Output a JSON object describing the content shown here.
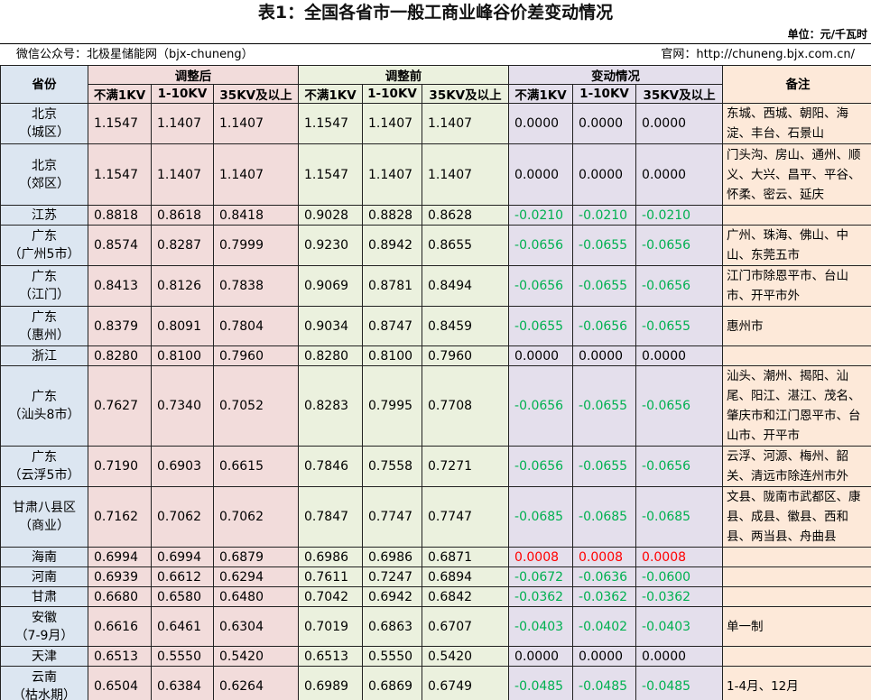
{
  "title": "表1：全国各省市一般工商业峰谷价差变动情况",
  "unit": "单位：元/千瓦时",
  "wechat": "微信公众号：北极星储能网（bjx-chuneng）",
  "website": "官网：http://chuneng.bjx.com.cn/",
  "headers": {
    "province": "省份",
    "after": "调整后",
    "before": "调整前",
    "change": "变动情况",
    "note": "备注",
    "sub": [
      "不满1KV",
      "1-10KV",
      "35KV及以上"
    ]
  },
  "colors": {
    "province": "#dce6f1",
    "after": "#f2dcdb",
    "before": "#ebf1de",
    "change": "#e4dfec",
    "note": "#fde9d9",
    "decrease": "#00b050",
    "increase": "#ff0000"
  },
  "rows": [
    {
      "province": [
        "北京",
        "（城区）"
      ],
      "after": [
        "1.1547",
        "1.1407",
        "1.1407"
      ],
      "before": [
        "1.1547",
        "1.1407",
        "1.1407"
      ],
      "change": [
        "0.0000",
        "0.0000",
        "0.0000"
      ],
      "note": "东城、西城、朝阳、海淀、丰台、石景山"
    },
    {
      "province": [
        "北京",
        "（郊区）"
      ],
      "after": [
        "1.1547",
        "1.1407",
        "1.1407"
      ],
      "before": [
        "1.1547",
        "1.1407",
        "1.1407"
      ],
      "change": [
        "0.0000",
        "0.0000",
        "0.0000"
      ],
      "note": "门头沟、房山、通州、顺义、大兴、昌平、平谷、怀柔、密云、延庆"
    },
    {
      "province": [
        "江苏"
      ],
      "after": [
        "0.8818",
        "0.8618",
        "0.8418"
      ],
      "before": [
        "0.9028",
        "0.8828",
        "0.8628"
      ],
      "change": [
        "-0.0210",
        "-0.0210",
        "-0.0210"
      ],
      "note": ""
    },
    {
      "province": [
        "广东",
        "（广州5市）"
      ],
      "after": [
        "0.8574",
        "0.8287",
        "0.7999"
      ],
      "before": [
        "0.9230",
        "0.8942",
        "0.8655"
      ],
      "change": [
        "-0.0656",
        "-0.0655",
        "-0.0656"
      ],
      "note": "广州、珠海、佛山、中山、东莞五市"
    },
    {
      "province": [
        "广东",
        "（江门）"
      ],
      "after": [
        "0.8413",
        "0.8126",
        "0.7838"
      ],
      "before": [
        "0.9069",
        "0.8781",
        "0.8494"
      ],
      "change": [
        "-0.0656",
        "-0.0655",
        "-0.0656"
      ],
      "note": "江门市除恩平市、台山市、开平市外"
    },
    {
      "province": [
        "广东",
        "（惠州）"
      ],
      "after": [
        "0.8379",
        "0.8091",
        "0.7804"
      ],
      "before": [
        "0.9034",
        "0.8747",
        "0.8459"
      ],
      "change": [
        "-0.0655",
        "-0.0656",
        "-0.0655"
      ],
      "note": "惠州市"
    },
    {
      "province": [
        "浙江"
      ],
      "after": [
        "0.8280",
        "0.8100",
        "0.7960"
      ],
      "before": [
        "0.8280",
        "0.8100",
        "0.7960"
      ],
      "change": [
        "0.0000",
        "0.0000",
        "0.0000"
      ],
      "note": ""
    },
    {
      "province": [
        "广东",
        "（汕头8市）"
      ],
      "after": [
        "0.7627",
        "0.7340",
        "0.7052"
      ],
      "before": [
        "0.8283",
        "0.7995",
        "0.7708"
      ],
      "change": [
        "-0.0656",
        "-0.0655",
        "-0.0656"
      ],
      "note": "汕头、潮州、揭阳、汕尾、阳江、湛江、茂名、肇庆市和江门恩平市、台山市、开平市"
    },
    {
      "province": [
        "广东",
        "（云浮5市）"
      ],
      "after": [
        "0.7190",
        "0.6903",
        "0.6615"
      ],
      "before": [
        "0.7846",
        "0.7558",
        "0.7271"
      ],
      "change": [
        "-0.0656",
        "-0.0655",
        "-0.0656"
      ],
      "note": "云浮、河源、梅州、韶关、清远市除连州市外"
    },
    {
      "province": [
        "甘肃八县区",
        "（商业）"
      ],
      "after": [
        "0.7162",
        "0.7062",
        "0.7062"
      ],
      "before": [
        "0.7847",
        "0.7747",
        "0.7747"
      ],
      "change": [
        "-0.0685",
        "-0.0685",
        "-0.0685"
      ],
      "note": "文县、陇南市武都区、康县、成县、徽县、西和县、两当县、舟曲县"
    },
    {
      "province": [
        "海南"
      ],
      "after": [
        "0.6994",
        "0.6994",
        "0.6879"
      ],
      "before": [
        "0.6986",
        "0.6986",
        "0.6871"
      ],
      "change": [
        "0.0008",
        "0.0008",
        "0.0008"
      ],
      "note": ""
    },
    {
      "province": [
        "河南"
      ],
      "after": [
        "0.6939",
        "0.6612",
        "0.6294"
      ],
      "before": [
        "0.7611",
        "0.7247",
        "0.6894"
      ],
      "change": [
        "-0.0672",
        "-0.0636",
        "-0.0600"
      ],
      "note": ""
    },
    {
      "province": [
        "甘肃"
      ],
      "after": [
        "0.6680",
        "0.6580",
        "0.6480"
      ],
      "before": [
        "0.7042",
        "0.6942",
        "0.6842"
      ],
      "change": [
        "-0.0362",
        "-0.0362",
        "-0.0362"
      ],
      "note": ""
    },
    {
      "province": [
        "安徽",
        "（7-9月）"
      ],
      "after": [
        "0.6616",
        "0.6461",
        "0.6304"
      ],
      "before": [
        "0.7019",
        "0.6863",
        "0.6707"
      ],
      "change": [
        "-0.0403",
        "-0.0402",
        "-0.0403"
      ],
      "note": "单一制"
    },
    {
      "province": [
        "天津"
      ],
      "after": [
        "0.6513",
        "0.5550",
        "0.5420"
      ],
      "before": [
        "0.6513",
        "0.5550",
        "0.5420"
      ],
      "change": [
        "0.0000",
        "0.0000",
        "0.0000"
      ],
      "note": ""
    },
    {
      "province": [
        "云南",
        "（枯水期）"
      ],
      "after": [
        "0.6504",
        "0.6384",
        "0.6264"
      ],
      "before": [
        "0.6989",
        "0.6869",
        "0.6749"
      ],
      "change": [
        "-0.0485",
        "-0.0485",
        "-0.0485"
      ],
      "note": "1-4月、12月"
    }
  ]
}
